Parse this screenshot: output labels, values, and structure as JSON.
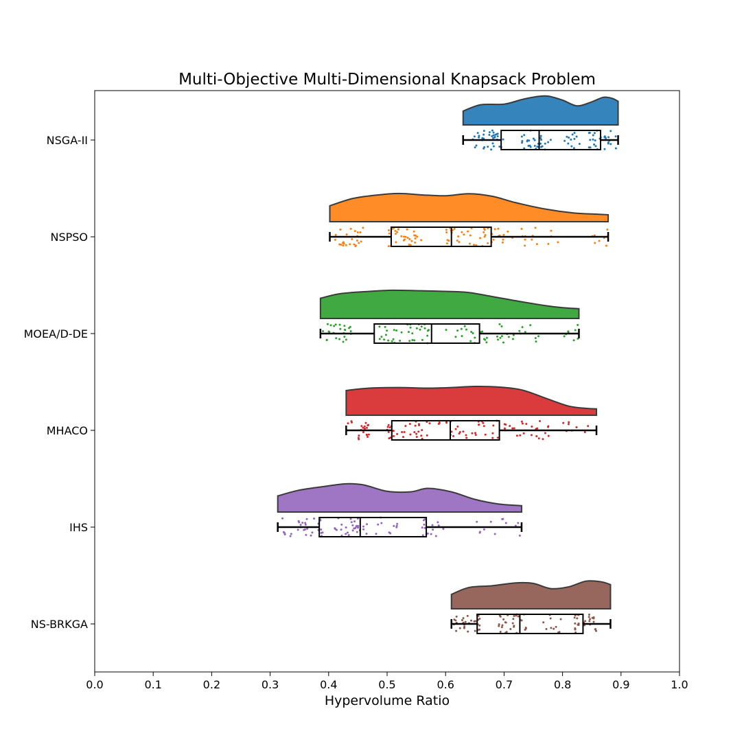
{
  "chart_data": {
    "type": "raincloud",
    "title": "Multi-Objective Multi-Dimensional Knapsack Problem",
    "xlabel": "Hypervolume Ratio",
    "ylabel": "",
    "xlim": [
      0.0,
      1.0
    ],
    "xticks": [
      "0.0",
      "0.1",
      "0.2",
      "0.3",
      "0.4",
      "0.5",
      "0.6",
      "0.7",
      "0.8",
      "0.9",
      "1.0"
    ],
    "grid": false,
    "series": [
      {
        "name": "NSGA-II",
        "color": "#1f77b4",
        "min": 0.63,
        "q1": 0.695,
        "median": 0.76,
        "q3": 0.865,
        "max": 0.895,
        "density": [
          [
            0.63,
            0.48
          ],
          [
            0.66,
            0.7
          ],
          [
            0.7,
            0.72
          ],
          [
            0.73,
            0.88
          ],
          [
            0.755,
            0.98
          ],
          [
            0.775,
            1.0
          ],
          [
            0.8,
            0.86
          ],
          [
            0.825,
            0.66
          ],
          [
            0.85,
            0.8
          ],
          [
            0.87,
            0.96
          ],
          [
            0.885,
            0.92
          ],
          [
            0.895,
            0.82
          ]
        ],
        "clusters": [
          [
            0.64,
            0.7,
            35
          ],
          [
            0.73,
            0.78,
            30
          ],
          [
            0.8,
            0.83,
            12
          ],
          [
            0.84,
            0.895,
            28
          ]
        ]
      },
      {
        "name": "NSPSO",
        "color": "#ff7f0e",
        "min": 0.402,
        "q1": 0.507,
        "median": 0.61,
        "q3": 0.678,
        "max": 0.878,
        "density": [
          [
            0.402,
            0.55
          ],
          [
            0.44,
            0.8
          ],
          [
            0.48,
            0.92
          ],
          [
            0.52,
            0.98
          ],
          [
            0.56,
            0.93
          ],
          [
            0.6,
            0.9
          ],
          [
            0.64,
            0.97
          ],
          [
            0.68,
            0.88
          ],
          [
            0.72,
            0.66
          ],
          [
            0.77,
            0.44
          ],
          [
            0.82,
            0.3
          ],
          [
            0.86,
            0.26
          ],
          [
            0.878,
            0.24
          ]
        ],
        "clusters": [
          [
            0.41,
            0.46,
            25
          ],
          [
            0.5,
            0.56,
            30
          ],
          [
            0.6,
            0.7,
            40
          ],
          [
            0.7,
            0.8,
            15
          ],
          [
            0.84,
            0.878,
            8
          ]
        ]
      },
      {
        "name": "MOEA/D-DE",
        "color": "#2ca02c",
        "min": 0.386,
        "q1": 0.478,
        "median": 0.576,
        "q3": 0.658,
        "max": 0.828,
        "density": [
          [
            0.386,
            0.7
          ],
          [
            0.42,
            0.86
          ],
          [
            0.47,
            0.94
          ],
          [
            0.51,
            0.98
          ],
          [
            0.56,
            0.96
          ],
          [
            0.6,
            0.94
          ],
          [
            0.64,
            0.9
          ],
          [
            0.68,
            0.76
          ],
          [
            0.73,
            0.58
          ],
          [
            0.78,
            0.42
          ],
          [
            0.81,
            0.36
          ],
          [
            0.828,
            0.34
          ]
        ],
        "clusters": [
          [
            0.39,
            0.44,
            25
          ],
          [
            0.48,
            0.58,
            35
          ],
          [
            0.6,
            0.7,
            25
          ],
          [
            0.7,
            0.76,
            12
          ],
          [
            0.8,
            0.828,
            8
          ]
        ]
      },
      {
        "name": "MHACO",
        "color": "#d62728",
        "min": 0.43,
        "q1": 0.508,
        "median": 0.608,
        "q3": 0.692,
        "max": 0.858,
        "density": [
          [
            0.43,
            0.86
          ],
          [
            0.47,
            0.94
          ],
          [
            0.52,
            0.96
          ],
          [
            0.57,
            0.94
          ],
          [
            0.61,
            0.96
          ],
          [
            0.65,
            1.0
          ],
          [
            0.69,
            0.98
          ],
          [
            0.73,
            0.88
          ],
          [
            0.77,
            0.6
          ],
          [
            0.81,
            0.32
          ],
          [
            0.84,
            0.24
          ],
          [
            0.858,
            0.22
          ]
        ],
        "clusters": [
          [
            0.43,
            0.47,
            20
          ],
          [
            0.5,
            0.6,
            35
          ],
          [
            0.6,
            0.72,
            35
          ],
          [
            0.72,
            0.78,
            18
          ],
          [
            0.8,
            0.858,
            8
          ]
        ]
      },
      {
        "name": "IHS",
        "color": "#9467bd",
        "min": 0.313,
        "q1": 0.384,
        "median": 0.454,
        "q3": 0.567,
        "max": 0.73,
        "density": [
          [
            0.313,
            0.56
          ],
          [
            0.35,
            0.76
          ],
          [
            0.39,
            0.88
          ],
          [
            0.43,
            0.98
          ],
          [
            0.46,
            0.94
          ],
          [
            0.5,
            0.72
          ],
          [
            0.54,
            0.7
          ],
          [
            0.57,
            0.82
          ],
          [
            0.61,
            0.7
          ],
          [
            0.65,
            0.44
          ],
          [
            0.69,
            0.28
          ],
          [
            0.73,
            0.22
          ]
        ],
        "clusters": [
          [
            0.32,
            0.39,
            30
          ],
          [
            0.41,
            0.47,
            30
          ],
          [
            0.48,
            0.52,
            10
          ],
          [
            0.56,
            0.6,
            15
          ],
          [
            0.63,
            0.73,
            12
          ]
        ]
      },
      {
        "name": "NS-BRKGA",
        "color": "#8c564b",
        "min": 0.61,
        "q1": 0.654,
        "median": 0.727,
        "q3": 0.835,
        "max": 0.882,
        "density": [
          [
            0.61,
            0.5
          ],
          [
            0.64,
            0.74
          ],
          [
            0.68,
            0.8
          ],
          [
            0.72,
            0.9
          ],
          [
            0.75,
            0.88
          ],
          [
            0.78,
            0.7
          ],
          [
            0.81,
            0.76
          ],
          [
            0.84,
            0.96
          ],
          [
            0.865,
            0.94
          ],
          [
            0.882,
            0.84
          ]
        ],
        "clusters": [
          [
            0.61,
            0.66,
            30
          ],
          [
            0.69,
            0.74,
            30
          ],
          [
            0.76,
            0.8,
            10
          ],
          [
            0.82,
            0.86,
            30
          ]
        ]
      }
    ]
  }
}
